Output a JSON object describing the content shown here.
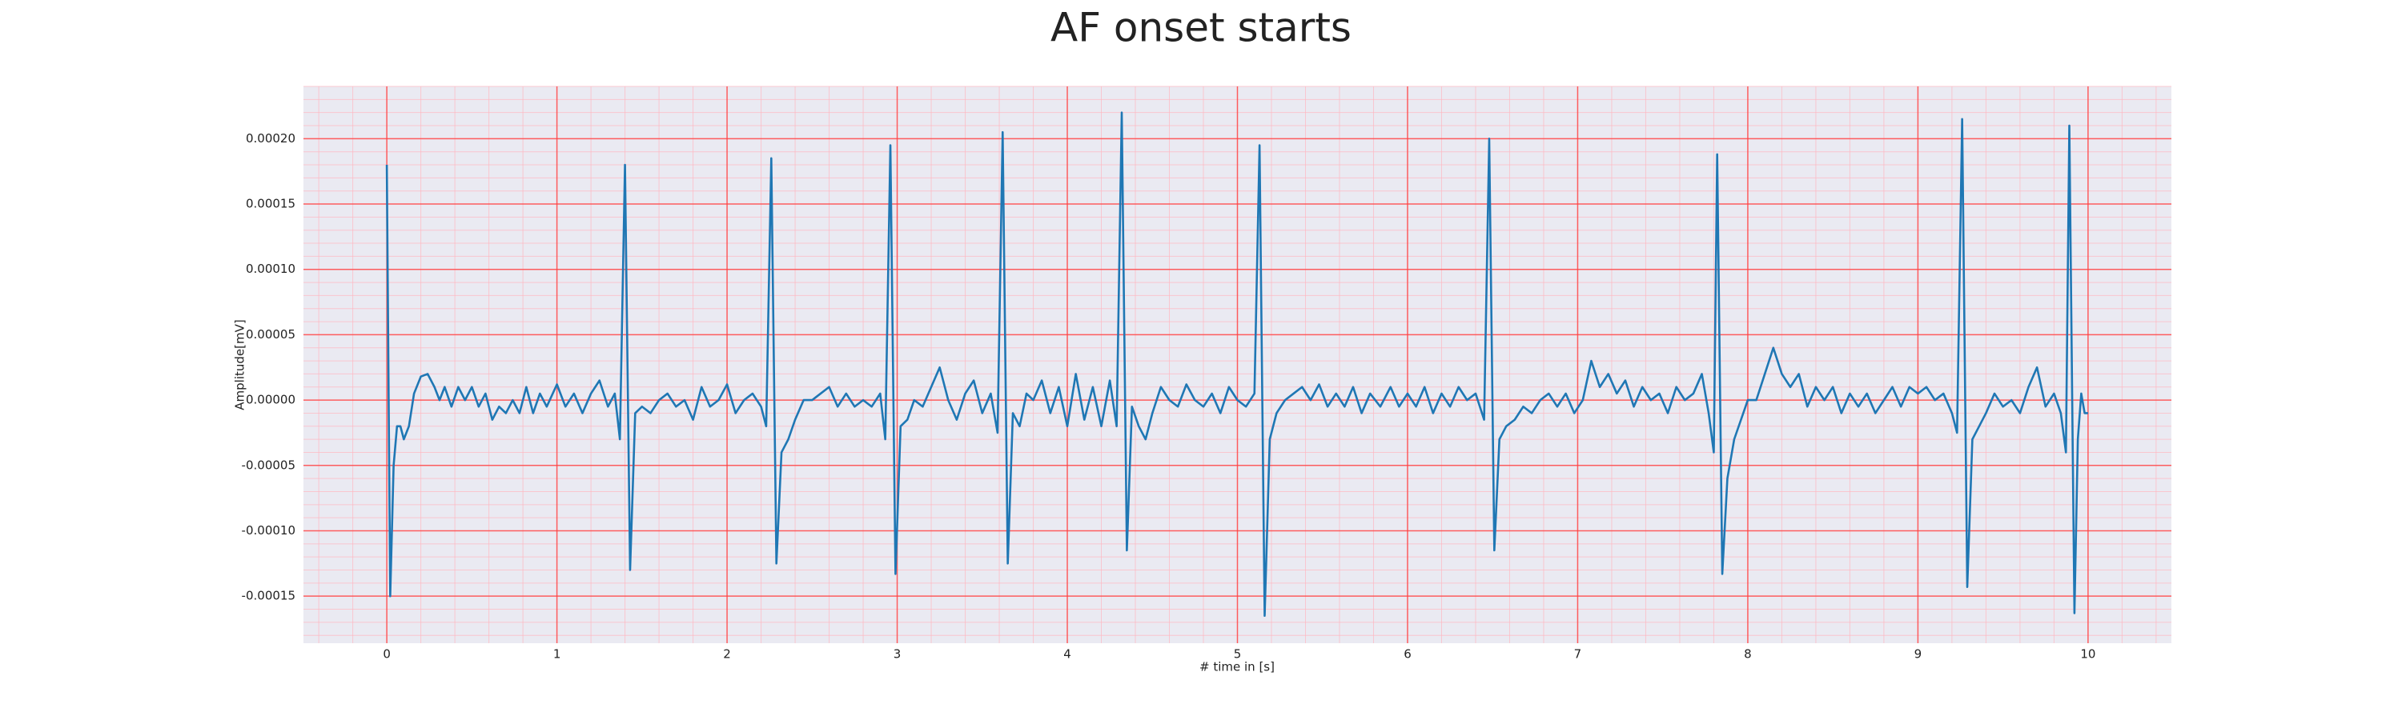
{
  "chart_data": {
    "type": "line",
    "title": "AF onset starts",
    "xlabel": "# time in [s]",
    "ylabel": "Amplitude[mV]",
    "color": "#1f77b4",
    "grid": true,
    "xlim": [
      -0.49,
      10.49
    ],
    "ylim": [
      -0.000186,
      0.00024
    ],
    "xticks": [
      0,
      1,
      2,
      3,
      4,
      5,
      6,
      7,
      8,
      9,
      10
    ],
    "yticks": [
      {
        "value": -0.00015,
        "label": "-0.00015"
      },
      {
        "value": -0.0001,
        "label": "-0.00010"
      },
      {
        "value": -5e-05,
        "label": "-0.00005"
      },
      {
        "value": 0,
        "label": "0.00000"
      },
      {
        "value": 5e-05,
        "label": "0.00005"
      },
      {
        "value": 0.0001,
        "label": "0.00010"
      },
      {
        "value": 0.00015,
        "label": "0.00015"
      },
      {
        "value": 0.0002,
        "label": "0.00020"
      }
    ],
    "x": [
      0.0,
      0.02,
      0.04,
      0.06,
      0.08,
      0.1,
      0.13,
      0.16,
      0.2,
      0.24,
      0.28,
      0.31,
      0.34,
      0.38,
      0.42,
      0.46,
      0.5,
      0.54,
      0.58,
      0.62,
      0.66,
      0.7,
      0.74,
      0.78,
      0.82,
      0.86,
      0.9,
      0.94,
      1.0,
      1.05,
      1.1,
      1.15,
      1.2,
      1.25,
      1.3,
      1.34,
      1.37,
      1.4,
      1.43,
      1.46,
      1.5,
      1.55,
      1.6,
      1.65,
      1.7,
      1.75,
      1.8,
      1.85,
      1.9,
      1.95,
      2.0,
      2.05,
      2.1,
      2.15,
      2.2,
      2.23,
      2.26,
      2.29,
      2.32,
      2.36,
      2.4,
      2.45,
      2.5,
      2.55,
      2.6,
      2.65,
      2.7,
      2.75,
      2.8,
      2.85,
      2.9,
      2.93,
      2.96,
      2.99,
      3.02,
      3.06,
      3.1,
      3.15,
      3.2,
      3.25,
      3.3,
      3.35,
      3.4,
      3.45,
      3.5,
      3.55,
      3.59,
      3.62,
      3.65,
      3.68,
      3.72,
      3.76,
      3.8,
      3.85,
      3.9,
      3.95,
      4.0,
      4.05,
      4.1,
      4.15,
      4.2,
      4.25,
      4.29,
      4.32,
      4.35,
      4.38,
      4.42,
      4.46,
      4.5,
      4.55,
      4.6,
      4.65,
      4.7,
      4.75,
      4.8,
      4.85,
      4.9,
      4.95,
      5.0,
      5.05,
      5.1,
      5.13,
      5.16,
      5.19,
      5.23,
      5.28,
      5.33,
      5.38,
      5.43,
      5.48,
      5.53,
      5.58,
      5.63,
      5.68,
      5.73,
      5.78,
      5.84,
      5.9,
      5.95,
      6.0,
      6.05,
      6.1,
      6.15,
      6.2,
      6.25,
      6.3,
      6.35,
      6.4,
      6.45,
      6.48,
      6.51,
      6.54,
      6.58,
      6.63,
      6.68,
      6.73,
      6.78,
      6.83,
      6.88,
      6.93,
      6.98,
      7.03,
      7.08,
      7.13,
      7.18,
      7.23,
      7.28,
      7.33,
      7.38,
      7.43,
      7.48,
      7.53,
      7.58,
      7.63,
      7.68,
      7.73,
      7.77,
      7.8,
      7.82,
      7.85,
      7.88,
      7.92,
      7.96,
      8.0,
      8.05,
      8.1,
      8.15,
      8.2,
      8.25,
      8.3,
      8.35,
      8.4,
      8.45,
      8.5,
      8.55,
      8.6,
      8.65,
      8.7,
      8.75,
      8.8,
      8.85,
      8.9,
      8.95,
      9.0,
      9.05,
      9.1,
      9.15,
      9.2,
      9.23,
      9.26,
      9.29,
      9.32,
      9.36,
      9.4,
      9.45,
      9.5,
      9.55,
      9.6,
      9.65,
      9.7,
      9.75,
      9.8,
      9.84,
      9.87,
      9.89,
      9.92,
      9.94,
      9.96,
      9.98,
      10.0
    ],
    "values": [
      0.00018,
      -0.00015,
      -5e-05,
      -2e-05,
      -2e-05,
      -3e-05,
      -2e-05,
      5e-06,
      1.8e-05,
      2e-05,
      1e-05,
      0,
      1e-05,
      -5e-06,
      1e-05,
      0,
      1e-05,
      -5e-06,
      5e-06,
      -1.5e-05,
      -5e-06,
      -1e-05,
      0,
      -1e-05,
      1e-05,
      -1e-05,
      5e-06,
      -5e-06,
      1.2e-05,
      -5e-06,
      5e-06,
      -1e-05,
      5e-06,
      1.5e-05,
      -5e-06,
      5e-06,
      -3e-05,
      0.00018,
      -0.00013,
      -1e-05,
      -5e-06,
      -1e-05,
      0,
      5e-06,
      -5e-06,
      0,
      -1.5e-05,
      1e-05,
      -5e-06,
      0,
      1.2e-05,
      -1e-05,
      0,
      5e-06,
      -5e-06,
      -2e-05,
      0.000185,
      -0.000125,
      -4e-05,
      -3e-05,
      -1.5e-05,
      0,
      0,
      5e-06,
      1e-05,
      -5e-06,
      5e-06,
      -5e-06,
      0,
      -5e-06,
      5e-06,
      -3e-05,
      0.000195,
      -0.000133,
      -2e-05,
      -1.5e-05,
      0,
      -5e-06,
      1e-05,
      2.5e-05,
      0,
      -1.5e-05,
      5e-06,
      1.5e-05,
      -1e-05,
      5e-06,
      -2.5e-05,
      0.000205,
      -0.000125,
      -1e-05,
      -2e-05,
      5e-06,
      0,
      1.5e-05,
      -1e-05,
      1e-05,
      -2e-05,
      2e-05,
      -1.5e-05,
      1e-05,
      -2e-05,
      1.5e-05,
      -2e-05,
      0.00022,
      -0.000115,
      -5e-06,
      -2e-05,
      -3e-05,
      -1e-05,
      1e-05,
      0,
      -5e-06,
      1.2e-05,
      0,
      -5e-06,
      5e-06,
      -1e-05,
      1e-05,
      0,
      -5e-06,
      5e-06,
      0.000195,
      -0.000165,
      -3e-05,
      -1e-05,
      0,
      5e-06,
      1e-05,
      0,
      1.2e-05,
      -5e-06,
      5e-06,
      -5e-06,
      1e-05,
      -1e-05,
      5e-06,
      -5e-06,
      1e-05,
      -5e-06,
      5e-06,
      -5e-06,
      1e-05,
      -1e-05,
      5e-06,
      -5e-06,
      1e-05,
      0,
      5e-06,
      -1.5e-05,
      0.0002,
      -0.000115,
      -3e-05,
      -2e-05,
      -1.5e-05,
      -5e-06,
      -1e-05,
      0,
      5e-06,
      -5e-06,
      5e-06,
      -1e-05,
      0,
      3e-05,
      1e-05,
      2e-05,
      5e-06,
      1.5e-05,
      -5e-06,
      1e-05,
      0,
      5e-06,
      -1e-05,
      1e-05,
      0,
      5e-06,
      2e-05,
      -1e-05,
      -4e-05,
      0.000188,
      -0.000133,
      -6e-05,
      -3e-05,
      -1.5e-05,
      0,
      0,
      2e-05,
      4e-05,
      2e-05,
      1e-05,
      2e-05,
      -5e-06,
      1e-05,
      0,
      1e-05,
      -1e-05,
      5e-06,
      -5e-06,
      5e-06,
      -1e-05,
      0,
      1e-05,
      -5e-06,
      1e-05,
      5e-06,
      1e-05,
      0,
      5e-06,
      -1e-05,
      -2.5e-05,
      0.000215,
      -0.000143,
      -3e-05,
      -2e-05,
      -1e-05,
      5e-06,
      -5e-06,
      0,
      -1e-05,
      1e-05,
      2.5e-05,
      -5e-06,
      5e-06,
      -1e-05,
      -4e-05,
      0.00021,
      -0.000163,
      -3e-05,
      5e-06,
      -1e-05,
      -1e-05
    ]
  }
}
